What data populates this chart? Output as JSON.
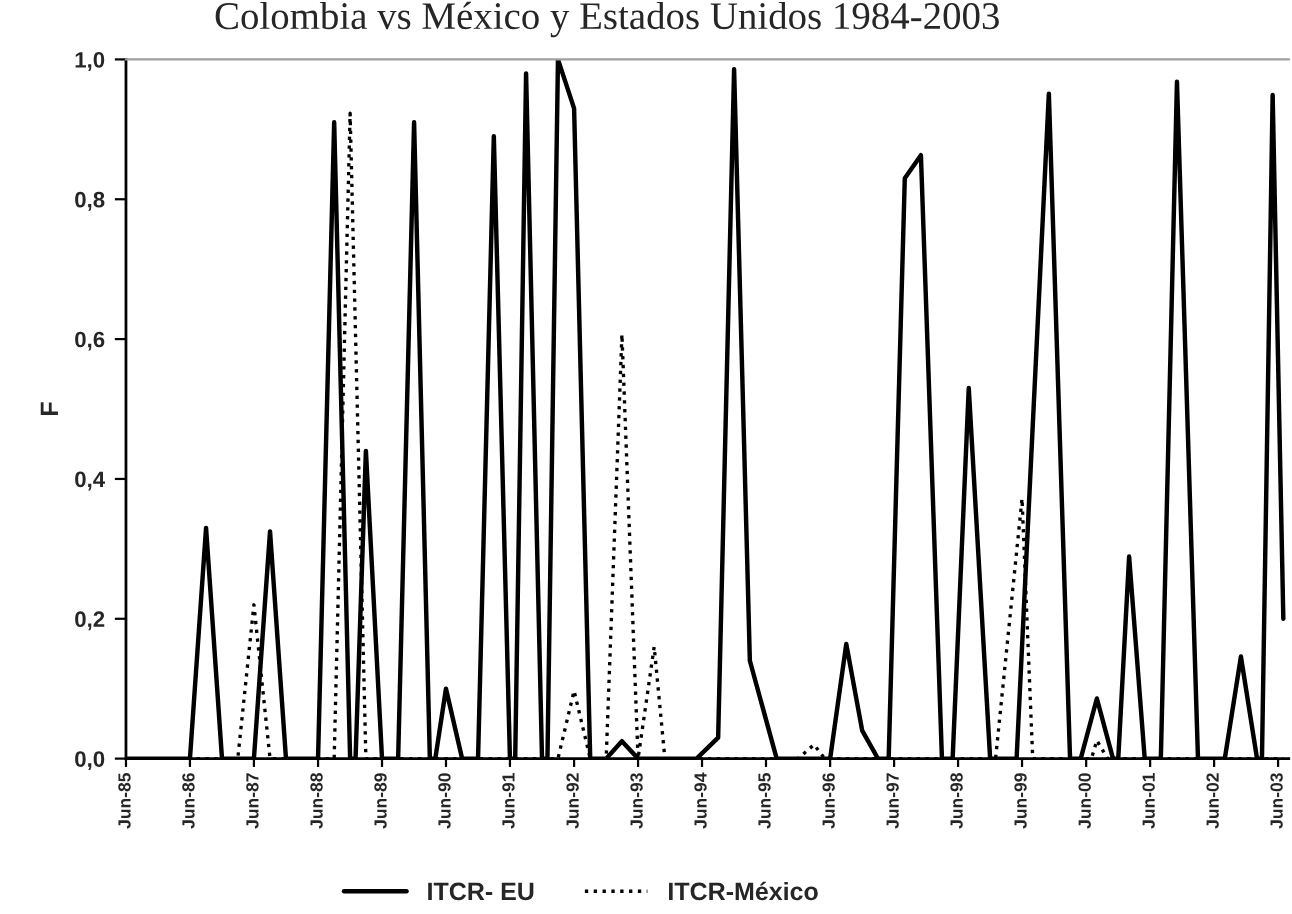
{
  "chart_data": {
    "type": "line",
    "title": "Colombia vs México y Estados Unidos 1984-2003",
    "ylabel": "F",
    "ylim": [
      0,
      1
    ],
    "yticks": [
      {
        "value": 0,
        "label": "0,0"
      },
      {
        "value": 0.2,
        "label": "0,2"
      },
      {
        "value": 0.4,
        "label": "0,4"
      },
      {
        "value": 0.6,
        "label": "0,6"
      },
      {
        "value": 0.8,
        "label": "0,8"
      },
      {
        "value": 1,
        "label": "1,0"
      }
    ],
    "xlim": [
      "1985-06",
      "2003-08"
    ],
    "xticks": [
      {
        "value": "1985-06",
        "label": "Jun-85"
      },
      {
        "value": "1986-06",
        "label": "Jun-86"
      },
      {
        "value": "1987-06",
        "label": "Jun-87"
      },
      {
        "value": "1988-06",
        "label": "Jun-88"
      },
      {
        "value": "1989-06",
        "label": "Jun-89"
      },
      {
        "value": "1990-06",
        "label": "Jun-90"
      },
      {
        "value": "1991-06",
        "label": "Jun-91"
      },
      {
        "value": "1992-06",
        "label": "Jun-92"
      },
      {
        "value": "1993-06",
        "label": "Jun-93"
      },
      {
        "value": "1994-06",
        "label": "Jun-94"
      },
      {
        "value": "1995-06",
        "label": "Jun-95"
      },
      {
        "value": "1996-06",
        "label": "Jun-96"
      },
      {
        "value": "1997-06",
        "label": "Jun-97"
      },
      {
        "value": "1998-06",
        "label": "Jun-98"
      },
      {
        "value": "1999-06",
        "label": "Jun-99"
      },
      {
        "value": "2000-06",
        "label": "Jun-00"
      },
      {
        "value": "2001-06",
        "label": "Jun-01"
      },
      {
        "value": "2002-06",
        "label": "Jun-02"
      },
      {
        "value": "2003-06",
        "label": "Jun-03"
      }
    ],
    "grid": false,
    "legend": "bottom",
    "marker": "none",
    "series": [
      {
        "name": "ITCR- EU",
        "color": "#000000",
        "line_style": "solid",
        "x": [
          "1985-06",
          "1986-06",
          "1986-09",
          "1986-12",
          "1987-06",
          "1987-09",
          "1987-12",
          "1988-06",
          "1988-09",
          "1988-12",
          "1989-01",
          "1989-03",
          "1989-06",
          "1989-09",
          "1989-12",
          "1990-03",
          "1990-04",
          "1990-06",
          "1990-09",
          "1990-12",
          "1991-03",
          "1991-06",
          "1991-07",
          "1991-09",
          "1991-12",
          "1992-01",
          "1992-03",
          "1992-06",
          "1992-09",
          "1992-12",
          "1993-03",
          "1993-06",
          "1994-05",
          "1994-09",
          "1994-12",
          "1995-03",
          "1995-08",
          "1996-06",
          "1996-09",
          "1996-12",
          "1997-03",
          "1997-05",
          "1997-08",
          "1997-11",
          "1998-03",
          "1998-05",
          "1998-08",
          "1998-12",
          "1999-05",
          "1999-11",
          "2000-03",
          "2000-05",
          "2000-08",
          "2000-11",
          "2000-12",
          "2001-02",
          "2001-05",
          "2001-08",
          "2001-11",
          "2002-03",
          "2002-08",
          "2002-11",
          "2003-02",
          "2003-03",
          "2003-05",
          "2003-07"
        ],
        "values": [
          0,
          0,
          0.33,
          0,
          0,
          0.325,
          0,
          0,
          0.91,
          0,
          0,
          0.44,
          0,
          0,
          0.91,
          0,
          0,
          0.1,
          0,
          0,
          0.89,
          0,
          0,
          0.98,
          0,
          0,
          1.0,
          0.93,
          0,
          0,
          0.025,
          0,
          0,
          0.03,
          0.986,
          0.14,
          0,
          0,
          0.164,
          0.04,
          0,
          0,
          0.83,
          0.863,
          0,
          0,
          0.53,
          0,
          0,
          0.951,
          0,
          0,
          0.086,
          0,
          0,
          0.289,
          0,
          0,
          0.968,
          0,
          0,
          0.146,
          0,
          0,
          0.949,
          0.2
        ]
      },
      {
        "name": "ITCR-México",
        "color": "#000000",
        "line_style": "dotted",
        "x": [
          "1985-06",
          "1987-03",
          "1987-06",
          "1987-09",
          "1988-09",
          "1988-12",
          "1989-03",
          "1992-03",
          "1992-06",
          "1992-09",
          "1992-12",
          "1993-03",
          "1993-06",
          "1993-09",
          "1993-11",
          "1995-12",
          "1996-03",
          "1996-05",
          "1999-01",
          "1999-06",
          "1999-08",
          "2000-07",
          "2000-08",
          "2000-10",
          "2003-07"
        ],
        "values": [
          0,
          0,
          0.22,
          0,
          0,
          0.923,
          0,
          0,
          0.097,
          0,
          0,
          0.607,
          0,
          0.16,
          0,
          0,
          0.02,
          0,
          0,
          0.372,
          0,
          0,
          0.026,
          0,
          0
        ]
      }
    ]
  }
}
